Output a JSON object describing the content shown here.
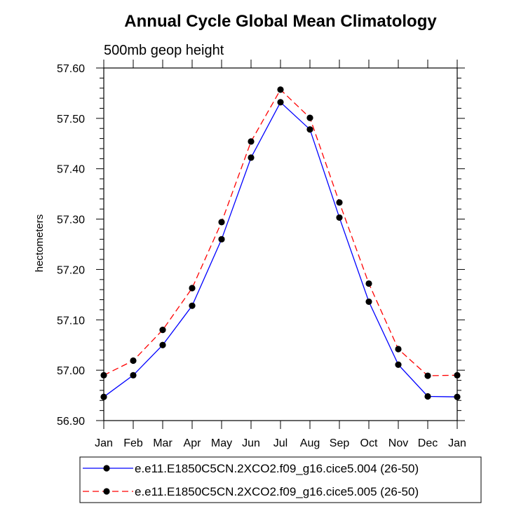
{
  "chart_data": {
    "type": "line",
    "title": "Annual Cycle Global Mean Climatology",
    "subtitle": "500mb geop height",
    "xlabel": "",
    "ylabel": "hectometers",
    "categories": [
      "Jan",
      "Feb",
      "Mar",
      "Apr",
      "May",
      "Jun",
      "Jul",
      "Aug",
      "Sep",
      "Oct",
      "Nov",
      "Dec",
      "Jan"
    ],
    "ylim": [
      56.9,
      57.6
    ],
    "yticks": [
      "56.90",
      "57.00",
      "57.10",
      "57.20",
      "57.30",
      "57.40",
      "57.50",
      "57.60"
    ],
    "grid": false,
    "legend_position": "bottom",
    "series": [
      {
        "name": "e.e11.E1850C5CN.2XCO2.f09_g16.cice5.004 (26-50)",
        "color": "#0000ff",
        "line_style": "solid",
        "marker": "filled-circle",
        "values": [
          56.947,
          56.99,
          57.05,
          57.128,
          57.26,
          57.422,
          57.532,
          57.478,
          57.303,
          57.136,
          57.011,
          56.948,
          56.947
        ]
      },
      {
        "name": "e.e11.E1850C5CN.2XCO2.f09_g16.cice5.005 (26-50)",
        "color": "#ff0000",
        "line_style": "dashed",
        "marker": "filled-circle",
        "values": [
          56.99,
          57.019,
          57.08,
          57.163,
          57.294,
          57.454,
          57.557,
          57.501,
          57.333,
          57.172,
          57.042,
          56.989,
          56.99
        ]
      }
    ]
  }
}
